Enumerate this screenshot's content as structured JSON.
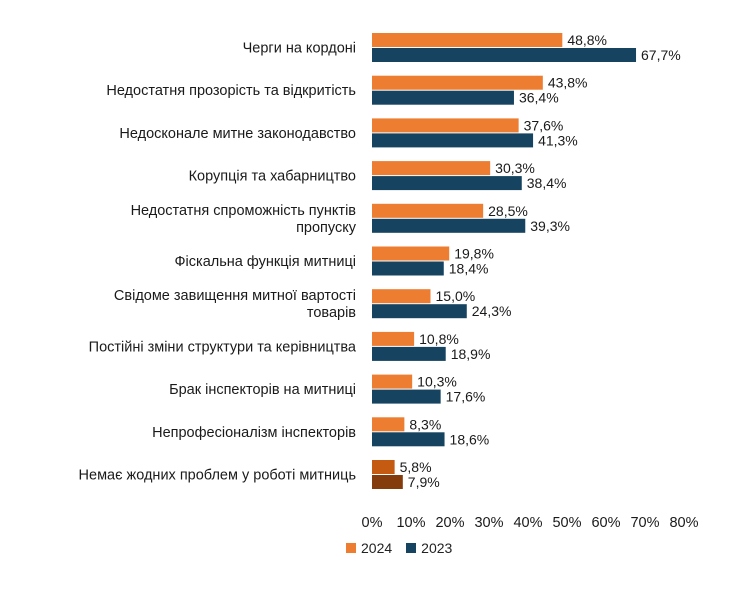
{
  "chart_data": {
    "type": "bar",
    "orientation": "horizontal",
    "categories": [
      [
        "Черги на кордоні"
      ],
      [
        "Недостатня прозорість та відкритість"
      ],
      [
        "Недосконале митне законодавство"
      ],
      [
        "Корупція та хабарництво"
      ],
      [
        "Недостатня спроможність пунктів",
        "пропуску"
      ],
      [
        "Фіскальна функція митниці"
      ],
      [
        "Свідоме завищення митної вартості",
        "товарів"
      ],
      [
        "Постійні зміни структури та керівництва"
      ],
      [
        "Брак інспекторів на митниці"
      ],
      [
        "Непрофесіоналізм інспекторів"
      ],
      [
        "Немає жодних проблем у роботі митниць"
      ]
    ],
    "series": [
      {
        "name": "2024",
        "color": "#ED7D31",
        "values": [
          48.8,
          43.8,
          37.6,
          30.3,
          28.5,
          19.8,
          15.0,
          10.8,
          10.3,
          8.3,
          5.8
        ],
        "labels": [
          "48,8%",
          "43,8%",
          "37,6%",
          "30,3%",
          "28,5%",
          "19,8%",
          "15,0%",
          "10,8%",
          "10,3%",
          "8,3%",
          "5,8%"
        ]
      },
      {
        "name": "2023",
        "color": "#154360",
        "values": [
          67.7,
          36.4,
          41.3,
          38.4,
          39.3,
          18.4,
          24.3,
          18.9,
          17.6,
          18.6,
          7.9
        ],
        "labels": [
          "67,7%",
          "36,4%",
          "41,3%",
          "38,4%",
          "39,3%",
          "18,4%",
          "24,3%",
          "18,9%",
          "17,6%",
          "18,6%",
          "7,9%"
        ]
      }
    ],
    "highlight_last_category_colors": [
      "#C55A11",
      "#843C0C"
    ],
    "xlim": [
      0,
      80
    ],
    "xticks": [
      "0%",
      "10%",
      "20%",
      "30%",
      "40%",
      "50%",
      "60%",
      "70%",
      "80%"
    ],
    "grid": false,
    "legend_position": "bottom"
  }
}
